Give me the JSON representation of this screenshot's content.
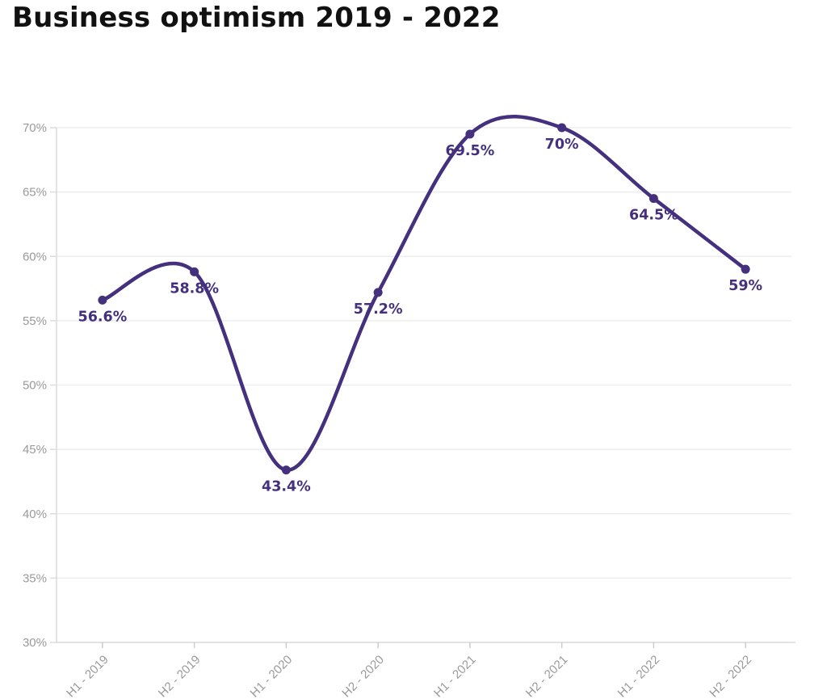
{
  "page": {
    "title": "Business optimism 2019 - 2022"
  },
  "chart_data": {
    "type": "line",
    "title": "Business optimism 2019 - 2022",
    "categories": [
      "H1 - 2019",
      "H2 - 2019",
      "H1 - 2020",
      "H2 - 2020",
      "H1 - 2021",
      "H2 - 2021",
      "H1 - 2022",
      "H2 - 2022"
    ],
    "series": [
      {
        "name": "Business optimism",
        "values": [
          56.6,
          58.8,
          43.4,
          57.2,
          69.5,
          70,
          64.5,
          59
        ]
      }
    ],
    "data_labels": [
      "56.6%",
      "58.8%",
      "43.4%",
      "57.2%",
      "69.5%",
      "70%",
      "64.5%",
      "59%"
    ],
    "y_ticks": [
      30,
      35,
      40,
      45,
      50,
      55,
      60,
      65,
      70
    ],
    "y_tick_labels": [
      "30%",
      "35%",
      "40%",
      "45%",
      "50%",
      "55%",
      "60%",
      "65%",
      "70%"
    ],
    "ylim": [
      30,
      70
    ],
    "xlabel": "",
    "ylabel": "",
    "legend": "none",
    "grid": "horizontal",
    "smooth": true,
    "colors": {
      "line": "#44307d",
      "point": "#44307d",
      "data_label": "#44307d",
      "axis_text": "#9a9a9a",
      "grid_line": "#ededed",
      "axis_line": "#dcdcdc",
      "tick_mark": "#cccccc",
      "title_text": "#111111",
      "background": "#ffffff"
    }
  }
}
